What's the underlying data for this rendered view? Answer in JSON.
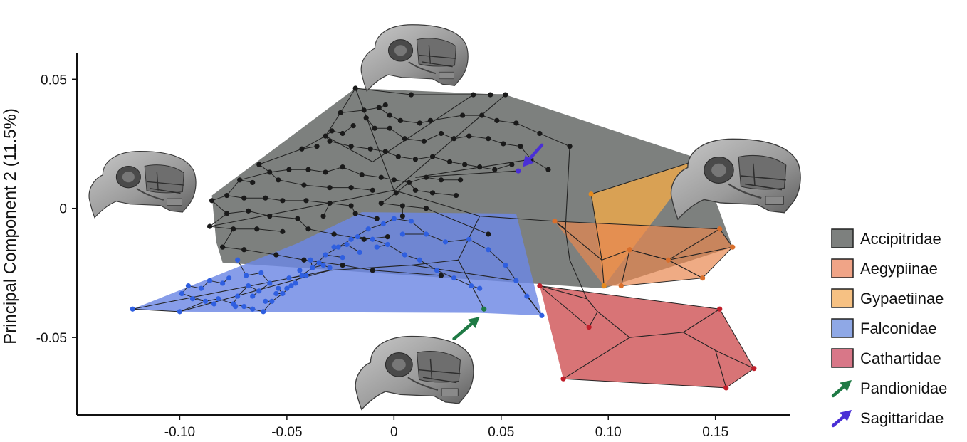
{
  "chart_data": {
    "type": "scatter",
    "title": "",
    "xlabel": "",
    "ylabel": "Principal Component 2 (11.5%)",
    "xlim": [
      -0.148,
      0.185
    ],
    "ylim": [
      -0.08,
      0.06
    ],
    "x_ticks": [
      "-0.10",
      "-0.05",
      "0",
      "0.05",
      "0.10",
      "0.15"
    ],
    "x_tick_values": [
      -0.1,
      -0.05,
      0,
      0.05,
      0.1,
      0.15
    ],
    "y_ticks": [
      "0.05",
      "0",
      "-0.05"
    ],
    "y_tick_values": [
      0.05,
      0,
      -0.05
    ],
    "legend_position": "right",
    "legend": [
      {
        "label": "Accipitridae",
        "color": "#7d807e",
        "marker": "box"
      },
      {
        "label": "Aegypiinae",
        "color": "#f0a487",
        "marker": "box"
      },
      {
        "label": "Gypaetiinae",
        "color": "#f6c183",
        "marker": "box"
      },
      {
        "label": "Falconidae",
        "color": "#8fa8e6",
        "marker": "box"
      },
      {
        "label": "Cathartidae",
        "color": "#d87788",
        "marker": "box"
      },
      {
        "label": "Pandionidae",
        "color": "#1f7a45",
        "marker": "arrow"
      },
      {
        "label": "Sagittaridae",
        "color": "#4a2fd6",
        "marker": "arrow"
      }
    ],
    "hulls": [
      {
        "group": "Accipitridae",
        "fill": "#5c605e",
        "opacity": 0.8,
        "points": [
          [
            -0.018,
            0.0465
          ],
          [
            0.052,
            0.044
          ],
          [
            0.143,
            0.019
          ],
          [
            0.158,
            -0.015
          ],
          [
            0.098,
            -0.031
          ],
          [
            -0.08,
            -0.021
          ],
          [
            -0.083,
            -0.013
          ],
          [
            -0.085,
            0.005
          ]
        ]
      },
      {
        "group": "Falconidae",
        "fill": "#6c88e4",
        "opacity": 0.82,
        "points": [
          [
            -0.122,
            -0.039
          ],
          [
            -0.045,
            -0.0135
          ],
          [
            -0.015,
            -0.0015
          ],
          [
            0.057,
            -0.002
          ],
          [
            0.069,
            -0.0415
          ],
          [
            0.04,
            -0.0405
          ],
          [
            -0.1,
            -0.04
          ]
        ]
      },
      {
        "group": "Gypaetiinae",
        "fill": "#f0a94a",
        "opacity": 0.8,
        "points": [
          [
            0.092,
            0.0055
          ],
          [
            0.143,
            0.019
          ],
          [
            0.098,
            -0.03
          ]
        ]
      },
      {
        "group": "Aegypiinae",
        "fill": "#e88850",
        "opacity": 0.7,
        "points": [
          [
            0.075,
            -0.005
          ],
          [
            0.152,
            -0.008
          ],
          [
            0.158,
            -0.015
          ],
          [
            0.144,
            -0.027
          ],
          [
            0.106,
            -0.03
          ],
          [
            0.098,
            -0.03
          ]
        ]
      },
      {
        "group": "Cathartidae",
        "fill": "#d05658",
        "opacity": 0.82,
        "points": [
          [
            0.068,
            -0.03
          ],
          [
            0.152,
            -0.039
          ],
          [
            0.168,
            -0.062
          ],
          [
            0.155,
            -0.0695
          ],
          [
            0.079,
            -0.066
          ]
        ]
      }
    ],
    "series": [
      {
        "name": "Accipitridae",
        "color": "#1a1a1a",
        "x": [
          -0.018,
          0.008,
          0.037,
          0.045,
          0.052,
          -0.025,
          -0.014,
          -0.007,
          -0.004,
          -0.013,
          -0.002,
          0.003,
          0.012,
          0.017,
          0.032,
          0.041,
          0.048,
          0.057,
          0.068,
          0.082,
          -0.032,
          -0.029,
          -0.024,
          -0.019,
          -0.009,
          -0.002,
          0.005,
          0.014,
          0.022,
          0.028,
          0.035,
          0.044,
          0.051,
          0.059,
          0.064,
          0.072,
          -0.043,
          -0.036,
          -0.03,
          -0.02,
          -0.011,
          -0.004,
          0.002,
          0.01,
          0.018,
          0.026,
          0.033,
          0.04,
          0.047,
          0.055,
          -0.063,
          -0.058,
          -0.049,
          -0.04,
          -0.032,
          -0.024,
          -0.015,
          -0.006,
          0.0,
          0.007,
          0.015,
          0.022,
          0.031,
          -0.072,
          -0.066,
          -0.054,
          -0.042,
          -0.03,
          -0.02,
          -0.01,
          0.001,
          0.01,
          0.018,
          0.029,
          -0.078,
          -0.07,
          -0.06,
          -0.052,
          -0.041,
          -0.03,
          -0.02,
          -0.006,
          0.004,
          0.015,
          -0.085,
          -0.078,
          -0.068,
          -0.058,
          -0.045,
          -0.033,
          -0.018,
          -0.008,
          0.004,
          -0.086,
          -0.075,
          -0.064,
          -0.052,
          -0.04,
          -0.028,
          -0.014,
          -0.003,
          -0.08,
          -0.07,
          -0.055,
          -0.042,
          -0.024,
          -0.01,
          0.022,
          0.044
        ],
        "y": [
          0.0465,
          0.044,
          0.044,
          0.044,
          0.044,
          0.037,
          0.038,
          0.039,
          0.04,
          0.035,
          0.036,
          0.034,
          0.033,
          0.034,
          0.036,
          0.036,
          0.034,
          0.033,
          0.029,
          0.024,
          0.028,
          0.03,
          0.029,
          0.032,
          0.031,
          0.031,
          0.027,
          0.026,
          0.029,
          0.027,
          0.028,
          0.027,
          0.025,
          0.024,
          0.019,
          0.015,
          0.023,
          0.024,
          0.026,
          0.024,
          0.023,
          0.022,
          0.02,
          0.019,
          0.02,
          0.018,
          0.017,
          0.016,
          0.015,
          0.017,
          0.017,
          0.014,
          0.015,
          0.015,
          0.014,
          0.016,
          0.013,
          0.012,
          0.011,
          0.01,
          0.012,
          0.011,
          0.011,
          0.011,
          0.01,
          0.011,
          0.009,
          0.008,
          0.008,
          0.007,
          0.006,
          0.007,
          0.006,
          0.005,
          0.005,
          0.004,
          0.004,
          0.003,
          0.003,
          0.002,
          0.001,
          0.002,
          0.001,
          0.0,
          0.003,
          -0.002,
          -0.001,
          -0.003,
          -0.004,
          -0.003,
          -0.002,
          -0.004,
          -0.003,
          -0.007,
          -0.008,
          -0.008,
          -0.009,
          -0.008,
          -0.01,
          -0.012,
          -0.011,
          -0.015,
          -0.016,
          -0.018,
          -0.02,
          -0.022,
          -0.024,
          -0.026,
          -0.01
        ]
      },
      {
        "name": "Falconidae",
        "color": "#2f5fe0",
        "x": [
          -0.122,
          -0.1,
          -0.088,
          -0.082,
          -0.075,
          -0.07,
          -0.066,
          -0.061,
          -0.057,
          -0.052,
          -0.048,
          -0.043,
          -0.038,
          -0.032,
          -0.026,
          -0.02,
          -0.012,
          -0.005,
          0.0,
          0.008,
          0.015,
          0.024,
          0.035,
          0.044,
          0.052,
          0.057,
          0.062,
          0.069,
          -0.099,
          -0.096,
          -0.09,
          -0.086,
          -0.08,
          -0.077,
          -0.073,
          -0.068,
          -0.063,
          -0.058,
          -0.054,
          -0.049,
          -0.044,
          -0.039,
          -0.033,
          -0.028,
          -0.022,
          -0.017,
          -0.01,
          -0.003,
          0.005,
          0.012,
          0.02,
          0.028,
          0.036,
          -0.094,
          -0.084,
          -0.074,
          -0.066,
          -0.06,
          -0.055,
          -0.05,
          -0.046,
          -0.041,
          -0.035,
          -0.03,
          -0.024,
          -0.016,
          -0.008,
          0.004,
          -0.062,
          -0.069,
          -0.073,
          0.04
        ],
        "y": [
          -0.039,
          -0.04,
          -0.036,
          -0.035,
          -0.037,
          -0.038,
          -0.039,
          -0.04,
          -0.036,
          -0.033,
          -0.03,
          -0.026,
          -0.023,
          -0.018,
          -0.015,
          -0.012,
          -0.008,
          -0.006,
          -0.004,
          -0.005,
          -0.01,
          -0.013,
          -0.012,
          -0.016,
          -0.022,
          -0.028,
          -0.034,
          -0.0415,
          -0.033,
          -0.03,
          -0.031,
          -0.028,
          -0.029,
          -0.027,
          -0.034,
          -0.03,
          -0.032,
          -0.029,
          -0.031,
          -0.027,
          -0.024,
          -0.02,
          -0.022,
          -0.015,
          -0.014,
          -0.011,
          -0.012,
          -0.014,
          -0.018,
          -0.02,
          -0.024,
          -0.027,
          -0.03,
          -0.035,
          -0.037,
          -0.038,
          -0.034,
          -0.036,
          -0.033,
          -0.031,
          -0.029,
          -0.026,
          -0.021,
          -0.023,
          -0.019,
          -0.017,
          -0.015,
          -0.01,
          -0.025,
          -0.026,
          -0.02,
          -0.031
        ]
      },
      {
        "name": "Gypaetiinae",
        "color": "#e48a1f",
        "x": [
          0.092,
          0.143,
          0.098
        ],
        "y": [
          0.0055,
          0.019,
          -0.03
        ]
      },
      {
        "name": "Aegypiinae",
        "color": "#d96f2c",
        "x": [
          0.075,
          0.152,
          0.158,
          0.144,
          0.106,
          0.128,
          0.11
        ],
        "y": [
          -0.005,
          -0.008,
          -0.015,
          -0.027,
          -0.03,
          -0.02,
          -0.016
        ]
      },
      {
        "name": "Cathartidae",
        "color": "#c01e2a",
        "x": [
          0.068,
          0.152,
          0.168,
          0.155,
          0.079,
          0.091
        ],
        "y": [
          -0.03,
          -0.039,
          -0.062,
          -0.0695,
          -0.066,
          -0.046
        ]
      },
      {
        "name": "Pandionidae",
        "color": "#1f7a45",
        "x": [
          0.042
        ],
        "y": [
          -0.039
        ]
      },
      {
        "name": "Sagittaridae",
        "color": "#4a2fd6",
        "x": [
          0.058
        ],
        "y": [
          0.0145
        ]
      }
    ],
    "tree_edges": [
      [
        [
          0.0,
          0.007
        ],
        [
          0.04,
          -0.003
        ]
      ],
      [
        [
          0.04,
          -0.003
        ],
        [
          0.075,
          -0.005
        ]
      ],
      [
        [
          0.075,
          -0.005
        ],
        [
          0.097,
          -0.02
        ]
      ],
      [
        [
          0.097,
          -0.02
        ],
        [
          0.098,
          -0.03
        ]
      ],
      [
        [
          0.097,
          -0.02
        ],
        [
          0.092,
          0.0055
        ]
      ],
      [
        [
          0.092,
          0.0055
        ],
        [
          0.143,
          0.019
        ]
      ],
      [
        [
          0.097,
          -0.02
        ],
        [
          0.11,
          -0.016
        ]
      ],
      [
        [
          0.11,
          -0.016
        ],
        [
          0.128,
          -0.02
        ]
      ],
      [
        [
          0.11,
          -0.016
        ],
        [
          0.106,
          -0.03
        ]
      ],
      [
        [
          0.128,
          -0.02
        ],
        [
          0.152,
          -0.008
        ]
      ],
      [
        [
          0.128,
          -0.02
        ],
        [
          0.158,
          -0.015
        ]
      ],
      [
        [
          0.128,
          -0.02
        ],
        [
          0.144,
          -0.027
        ]
      ],
      [
        [
          0.075,
          -0.005
        ],
        [
          0.08,
          -0.008
        ]
      ],
      [
        [
          0.08,
          -0.008
        ],
        [
          0.082,
          -0.02
        ]
      ],
      [
        [
          0.082,
          -0.02
        ],
        [
          0.09,
          -0.035
        ]
      ],
      [
        [
          0.09,
          -0.035
        ],
        [
          0.068,
          -0.03
        ]
      ],
      [
        [
          0.09,
          -0.035
        ],
        [
          0.095,
          -0.04
        ]
      ],
      [
        [
          0.095,
          -0.04
        ],
        [
          0.091,
          -0.046
        ]
      ],
      [
        [
          0.095,
          -0.04
        ],
        [
          0.11,
          -0.05
        ]
      ],
      [
        [
          0.11,
          -0.05
        ],
        [
          0.079,
          -0.066
        ]
      ],
      [
        [
          0.11,
          -0.05
        ],
        [
          0.135,
          -0.048
        ]
      ],
      [
        [
          0.135,
          -0.048
        ],
        [
          0.152,
          -0.039
        ]
      ],
      [
        [
          0.135,
          -0.048
        ],
        [
          0.15,
          -0.055
        ]
      ],
      [
        [
          0.15,
          -0.055
        ],
        [
          0.168,
          -0.062
        ]
      ],
      [
        [
          0.15,
          -0.055
        ],
        [
          0.155,
          -0.0695
        ]
      ],
      [
        [
          0.08,
          -0.008
        ],
        [
          0.082,
          0.024
        ]
      ],
      [
        [
          0.04,
          -0.003
        ],
        [
          0.03,
          -0.02
        ]
      ],
      [
        [
          0.03,
          -0.02
        ],
        [
          0.042,
          -0.039
        ]
      ],
      [
        [
          0.03,
          -0.02
        ],
        [
          0.008,
          -0.022
        ]
      ],
      [
        [
          0.008,
          -0.022
        ],
        [
          -0.03,
          -0.024
        ]
      ],
      [
        [
          -0.03,
          -0.024
        ],
        [
          -0.122,
          -0.039
        ]
      ],
      [
        [
          -0.03,
          -0.024
        ],
        [
          -0.1,
          -0.04
        ]
      ],
      [
        [
          0.008,
          -0.022
        ],
        [
          0.057,
          -0.028
        ]
      ],
      [
        [
          0.057,
          -0.028
        ],
        [
          0.069,
          -0.0415
        ]
      ],
      [
        [
          0.0,
          0.007
        ],
        [
          -0.018,
          0.0465
        ]
      ],
      [
        [
          0.0,
          0.007
        ],
        [
          0.052,
          0.044
        ]
      ],
      [
        [
          0.0,
          0.007
        ],
        [
          -0.086,
          -0.007
        ]
      ],
      [
        [
          -0.01,
          0.018
        ],
        [
          0.037,
          0.044
        ]
      ],
      [
        [
          -0.01,
          0.018
        ],
        [
          -0.032,
          0.028
        ]
      ],
      [
        [
          0.01,
          0.012
        ],
        [
          0.064,
          0.019
        ]
      ],
      [
        [
          0.01,
          0.012
        ],
        [
          0.058,
          0.0145
        ]
      ]
    ],
    "annotations": [
      {
        "type": "arrow",
        "color": "#1f7a45",
        "label": "Pandionidae",
        "from": [
          0.028,
          -0.0505
        ],
        "to": [
          0.04,
          -0.042
        ]
      },
      {
        "type": "arrow",
        "color": "#4a2fd6",
        "label": "Sagittaridae",
        "from": [
          0.069,
          0.0245
        ],
        "to": [
          0.06,
          0.016
        ]
      }
    ],
    "skull_images": [
      {
        "name": "skull-top-icon",
        "at": [
          0.01,
          0.058
        ]
      },
      {
        "name": "skull-left-icon",
        "at": [
          -0.117,
          0.009
        ]
      },
      {
        "name": "skull-right-icon",
        "at": [
          0.16,
          0.011
        ]
      },
      {
        "name": "skull-bottom-icon",
        "at": [
          0.01,
          -0.064
        ]
      }
    ]
  }
}
